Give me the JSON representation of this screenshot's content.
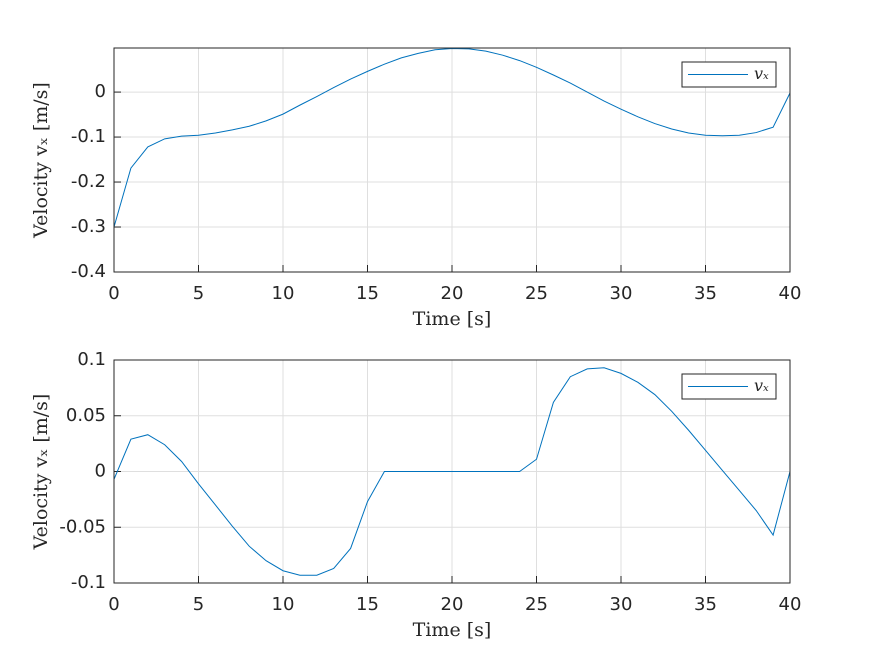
{
  "chart_data": [
    {
      "type": "line",
      "xlabel": "Time [s]",
      "ylabel": "Velocity vₓ [m/s]",
      "x": [
        0,
        1,
        2,
        3,
        4,
        5,
        6,
        7,
        8,
        9,
        10,
        11,
        12,
        13,
        14,
        15,
        16,
        17,
        18,
        19,
        20,
        21,
        22,
        23,
        24,
        25,
        26,
        27,
        28,
        29,
        30,
        31,
        32,
        33,
        34,
        35,
        36,
        37,
        38,
        39,
        40
      ],
      "series": [
        {
          "name": "vₓ",
          "color": "#0072bd",
          "values": [
            -0.3,
            -0.169,
            -0.122,
            -0.104,
            -0.098,
            -0.096,
            -0.091,
            -0.084,
            -0.076,
            -0.064,
            -0.049,
            -0.029,
            -0.01,
            0.01,
            0.029,
            0.046,
            0.062,
            0.076,
            0.086,
            0.094,
            0.097,
            0.096,
            0.091,
            0.082,
            0.07,
            0.055,
            0.038,
            0.02,
            0,
            -0.02,
            -0.038,
            -0.055,
            -0.07,
            -0.082,
            -0.091,
            -0.096,
            -0.097,
            -0.096,
            -0.09,
            -0.078,
            -0.002
          ]
        }
      ],
      "xlim": [
        0,
        40
      ],
      "ylim": [
        -0.4,
        0.098
      ],
      "xticks": [
        0,
        5,
        10,
        15,
        20,
        25,
        30,
        35,
        40
      ],
      "yticks": [
        -0.4,
        -0.3,
        -0.2,
        -0.1,
        0
      ],
      "grid": true,
      "legend": "northeast"
    },
    {
      "type": "line",
      "xlabel": "Time [s]",
      "ylabel": "Velocity vₓ [m/s]",
      "x": [
        0,
        1,
        2,
        3,
        4,
        5,
        6,
        7,
        8,
        9,
        10,
        11,
        12,
        13,
        14,
        15,
        16,
        17,
        18,
        19,
        20,
        21,
        22,
        23,
        24,
        25,
        26,
        27,
        28,
        29,
        30,
        31,
        32,
        33,
        34,
        35,
        36,
        37,
        38,
        39,
        40
      ],
      "series": [
        {
          "name": "vₓ",
          "color": "#0072bd",
          "values": [
            -0.007,
            0.029,
            0.033,
            0.024,
            0.009,
            -0.011,
            -0.03,
            -0.049,
            -0.067,
            -0.08,
            -0.089,
            -0.093,
            -0.093,
            -0.087,
            -0.069,
            -0.027,
            0,
            0,
            0,
            0,
            0,
            0,
            0,
            0,
            0,
            0.011,
            0.062,
            0.085,
            0.092,
            0.093,
            0.088,
            0.08,
            0.069,
            0.054,
            0.037,
            0.019,
            0.001,
            -0.017,
            -0.035,
            -0.057,
            0
          ]
        }
      ],
      "xlim": [
        0,
        40
      ],
      "ylim": [
        -0.1,
        0.1
      ],
      "xticks": [
        0,
        5,
        10,
        15,
        20,
        25,
        30,
        35,
        40
      ],
      "yticks": [
        -0.1,
        -0.05,
        0,
        0.05,
        0.1
      ],
      "grid": true,
      "legend": "northeast"
    }
  ]
}
